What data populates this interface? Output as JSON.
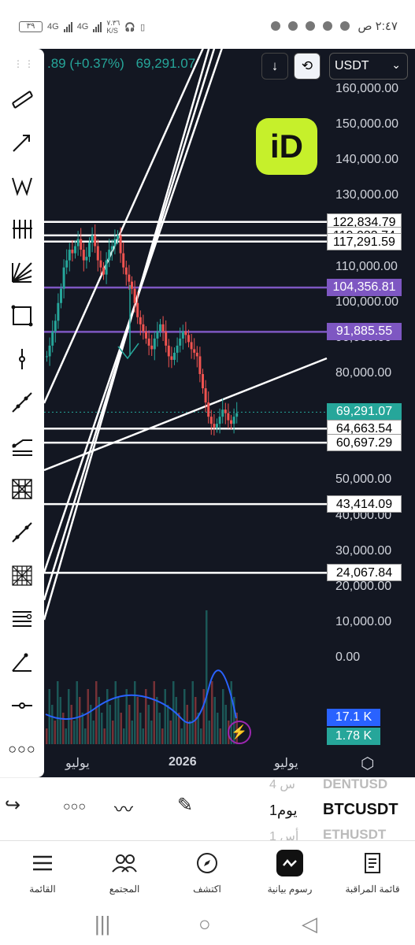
{
  "status_bar": {
    "time": "٢:٤٧ ص",
    "battery": "٣٩",
    "network_1": "4G",
    "network_2": "4G",
    "speed": "٧.٣٦",
    "speed_unit": "K/S"
  },
  "chart": {
    "price_partial": ".89",
    "change": "(+0.37%)",
    "price": "69,291.07",
    "currency": "USDT",
    "axis_labels": [
      "160,000.00",
      "150,000.00",
      "140,000.00",
      "130,000.00",
      "120,000.00",
      "110,000.00",
      "100,000.00",
      "90,000.00",
      "80,000.00",
      "70,000.00",
      "60,000.00",
      "50,000.00",
      "40,000.00",
      "30,000.00",
      "20,000.00",
      "10,000.00",
      "0.00"
    ],
    "levels": [
      {
        "label": "122,834.79",
        "style": "white"
      },
      {
        "label": "119,033.74",
        "style": "white"
      },
      {
        "label": "117,291.59",
        "style": "white"
      },
      {
        "label": "104,356.81",
        "style": "purple"
      },
      {
        "label": "91,885.55",
        "style": "purple"
      },
      {
        "label": "69,291.07",
        "style": "green"
      },
      {
        "label": "64,663.54",
        "style": "white"
      },
      {
        "label": "60,697.29",
        "style": "white"
      },
      {
        "label": "43,414.09",
        "style": "white"
      },
      {
        "label": "24,067.84",
        "style": "white"
      }
    ],
    "volume_labels": {
      "vol_ma": "17.1 K",
      "vol": "1.78 K"
    },
    "time_labels": {
      "left": "يوليو",
      "center": "2026",
      "right": "يوليو"
    },
    "colors": {
      "bg": "#131722",
      "up": "#26a69a",
      "down": "#ef5350",
      "purple": "#7e57c2",
      "brand": "#c6f02b"
    }
  },
  "panel": {
    "symbol_prev": "DENTUSD",
    "symbol_current": "BTCUSDT",
    "symbol_next": "ETHUSDT",
    "interval_prev": "4 س",
    "interval_current": "1يوم",
    "interval_next": "1 أس"
  },
  "bottom_nav": {
    "items": [
      "القائمة",
      "المجتمع",
      "اكتشف",
      "رسوم بيانية",
      "قائمة المراقبة"
    ]
  }
}
